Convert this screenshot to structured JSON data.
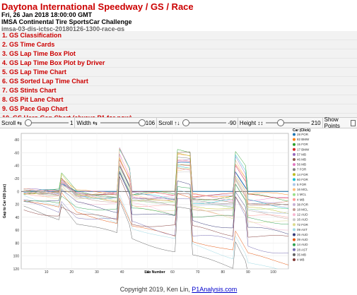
{
  "header": {
    "title": "Daytona International Speedway / GS / Race",
    "date": "Fri, 26 Jan 2018 18:00:00 GMT",
    "series": "IMSA Continental Tire SportsCar Challenge",
    "session_id": "imsa-03-dis-ictsc-20180126-1300-race-gs"
  },
  "menu": [
    "1. GS Classification",
    "2. GS Time Cards",
    "3. GS Lap Time Box Plot",
    "4. GS Lap Time Box Plot by Driver",
    "5. GS Lap Time Chart",
    "6. GS Sorted Lap Time Chart",
    "7. GS Stints Chart",
    "8. GS Pit Lane Chart",
    "9. GS Pace Gap Chart",
    "10. GS Hero Gap Chart (always P1 for now)"
  ],
  "controls": {
    "scroll_h_label": "Scroll ⇆",
    "scroll_h_value": "1",
    "scroll_h_level": 0.0,
    "width_label": "Width ⇆",
    "width_value": "106",
    "width_level": 1.0,
    "scroll_v_label": "Scroll ↑↓",
    "scroll_v_value": "-90",
    "scroll_v_level": 0.0,
    "height_label": "Height ↕↕",
    "height_value": "210",
    "height_level": 0.3,
    "show_points_label": "Show Points"
  },
  "chart_data": {
    "type": "line",
    "xlabel": "Lap Number",
    "ylabel": "Gap to Car #28 (sec)",
    "xlim": [
      0,
      106
    ],
    "ylim": [
      120,
      -90
    ],
    "x_ticks": [
      10,
      20,
      30,
      40,
      50,
      60,
      70,
      80,
      90,
      100
    ],
    "y_ticks": [
      -80,
      -60,
      -40,
      -20,
      0,
      20,
      40,
      60,
      80,
      100,
      120
    ],
    "legend_title": "Car (Click)",
    "legend_position": "right",
    "grid": true,
    "series": [
      {
        "name": "28 POR",
        "color": "#1f77b4"
      },
      {
        "name": "82 BMW",
        "color": "#ff7f0e"
      },
      {
        "name": "15 FOR",
        "color": "#2ca02c"
      },
      {
        "name": "17 BMW",
        "color": "#d62728"
      },
      {
        "name": "57 MB",
        "color": "#9467bd"
      },
      {
        "name": "46 MB",
        "color": "#8c564b"
      },
      {
        "name": "56 MB",
        "color": "#e377c2"
      },
      {
        "name": "7 FOR",
        "color": "#7f7f7f"
      },
      {
        "name": "14 FOR",
        "color": "#bcbd22"
      },
      {
        "name": "60 FOR",
        "color": "#17becf"
      },
      {
        "name": "5 FOR",
        "color": "#aec7e8"
      },
      {
        "name": "16 MCL",
        "color": "#ffbb78"
      },
      {
        "name": "1 MCL",
        "color": "#98df8a"
      },
      {
        "name": "4 MB",
        "color": "#ff9896"
      },
      {
        "name": "38 POR",
        "color": "#c5b0d5"
      },
      {
        "name": "18 MCL",
        "color": "#c49c94"
      },
      {
        "name": "12 AUD",
        "color": "#f7b6d2"
      },
      {
        "name": "16 AUD",
        "color": "#c7c7c7"
      },
      {
        "name": "72 FOR",
        "color": "#dbdb8d"
      },
      {
        "name": "09 AST",
        "color": "#9edae5"
      },
      {
        "name": "26 AUD",
        "color": "#393b79"
      },
      {
        "name": "39 AUD",
        "color": "#e6550d"
      },
      {
        "name": "14 AUD",
        "color": "#31a354"
      },
      {
        "name": "28 AST",
        "color": "#756bb1"
      },
      {
        "name": "35 MB",
        "color": "#636363"
      },
      {
        "name": "4 MB",
        "color": "#843c39"
      }
    ]
  },
  "footer": {
    "copyright": "Copyright 2019, Ken Lin, ",
    "link": "P1Analysis.com"
  }
}
